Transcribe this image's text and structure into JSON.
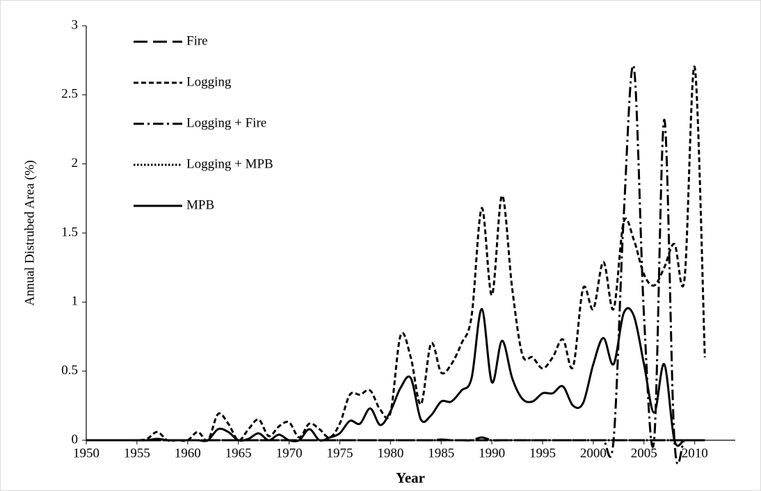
{
  "chart_data": {
    "type": "line",
    "x_label": "Year",
    "y_label": "Annual Distrubed Area (%)",
    "x": [
      1950,
      1951,
      1952,
      1953,
      1954,
      1955,
      1956,
      1957,
      1958,
      1959,
      1960,
      1961,
      1962,
      1963,
      1964,
      1965,
      1966,
      1967,
      1968,
      1969,
      1970,
      1971,
      1972,
      1973,
      1974,
      1975,
      1976,
      1977,
      1978,
      1979,
      1980,
      1981,
      1982,
      1983,
      1984,
      1985,
      1986,
      1987,
      1988,
      1989,
      1990,
      1991,
      1992,
      1993,
      1994,
      1995,
      1996,
      1997,
      1998,
      1999,
      2000,
      2001,
      2002,
      2003,
      2004,
      2005,
      2006,
      2007,
      2008,
      2009,
      2010,
      2011
    ],
    "xlim": [
      1950,
      2014
    ],
    "xticks": [
      1950,
      1955,
      1960,
      1965,
      1970,
      1975,
      1980,
      1985,
      1990,
      1995,
      2000,
      2005,
      2010
    ],
    "ylim": [
      0,
      3
    ],
    "yticks": [
      0,
      0.5,
      1,
      1.5,
      2,
      2.5,
      3
    ],
    "smooth": true,
    "series": [
      {
        "name": "Fire",
        "color": "#000000",
        "dash": "long-dash",
        "values": [
          0,
          0,
          0,
          0,
          0,
          0,
          0,
          0,
          0,
          0,
          0,
          0,
          0,
          0,
          0,
          0,
          0,
          0,
          0,
          0,
          0,
          0,
          0,
          0,
          0,
          0,
          0,
          0,
          0,
          0,
          0,
          0,
          0,
          0,
          0,
          0.005,
          0,
          0,
          0,
          0.02,
          0,
          0,
          0,
          0,
          0,
          0,
          0,
          0,
          0,
          0,
          0,
          0,
          0,
          0,
          0,
          0,
          0,
          0,
          0,
          0,
          0,
          0
        ]
      },
      {
        "name": "Logging",
        "color": "#000000",
        "dash": "dash",
        "values": [
          0,
          0,
          0,
          0,
          0,
          0,
          0.01,
          0.06,
          0,
          0,
          0,
          0.06,
          0,
          0.19,
          0.12,
          0,
          0.08,
          0.15,
          0.03,
          0.1,
          0.13,
          0.02,
          0.12,
          0.08,
          0.02,
          0.12,
          0.33,
          0.33,
          0.36,
          0.22,
          0.2,
          0.76,
          0.6,
          0.26,
          0.7,
          0.49,
          0.55,
          0.7,
          0.9,
          1.68,
          1.05,
          1.77,
          1.1,
          0.62,
          0.6,
          0.52,
          0.6,
          0.73,
          0.53,
          1.1,
          0.95,
          1.29,
          0.95,
          1.58,
          1.45,
          1.2,
          1.12,
          1.25,
          1.42,
          1.17,
          2.7,
          0.6
        ]
      },
      {
        "name": "Logging + Fire",
        "color": "#000000",
        "dash": "dash-dot",
        "values": [
          0,
          0,
          0,
          0,
          0,
          0,
          0,
          0,
          0,
          0,
          0,
          0,
          0,
          0,
          0,
          0,
          0,
          0,
          0,
          0,
          0,
          0,
          0,
          0,
          0,
          0,
          0,
          0,
          0,
          0,
          0,
          0,
          0,
          0,
          0,
          0,
          0,
          0,
          0,
          0,
          0,
          0,
          0,
          0,
          0,
          0,
          0,
          0,
          0,
          0,
          0,
          0,
          0,
          1.62,
          2.7,
          0.9,
          0,
          2.32,
          0,
          0,
          0,
          0
        ]
      },
      {
        "name": "Logging + MPB",
        "color": "#000000",
        "dash": "dot",
        "values": [
          0,
          0,
          0,
          0,
          0,
          0,
          0,
          0,
          0,
          0,
          0,
          0,
          0,
          0,
          0,
          0,
          0,
          0,
          0,
          0,
          0,
          0,
          0,
          0,
          0,
          0,
          0,
          0,
          0,
          0,
          0,
          0,
          0,
          0,
          0,
          0,
          0,
          0,
          0,
          0,
          0,
          0,
          0,
          0,
          0,
          0,
          0,
          0,
          0,
          0,
          0,
          0,
          0,
          0,
          0,
          0,
          0,
          0,
          0,
          0,
          0,
          0
        ]
      },
      {
        "name": "MPB",
        "color": "#000000",
        "dash": "solid",
        "values": [
          0,
          0,
          0,
          0,
          0,
          0,
          0,
          0.01,
          0,
          0,
          0,
          0,
          0,
          0.08,
          0.06,
          0,
          0.01,
          0.05,
          0,
          0.04,
          0,
          0,
          0.08,
          0,
          0.02,
          0.05,
          0.14,
          0.12,
          0.23,
          0.11,
          0.21,
          0.38,
          0.45,
          0.15,
          0.18,
          0.28,
          0.28,
          0.36,
          0.45,
          0.95,
          0.42,
          0.72,
          0.45,
          0.3,
          0.28,
          0.34,
          0.34,
          0.39,
          0.25,
          0.27,
          0.55,
          0.74,
          0.55,
          0.92,
          0.9,
          0.55,
          0.2,
          0.55,
          0,
          0,
          0,
          0
        ]
      }
    ]
  }
}
